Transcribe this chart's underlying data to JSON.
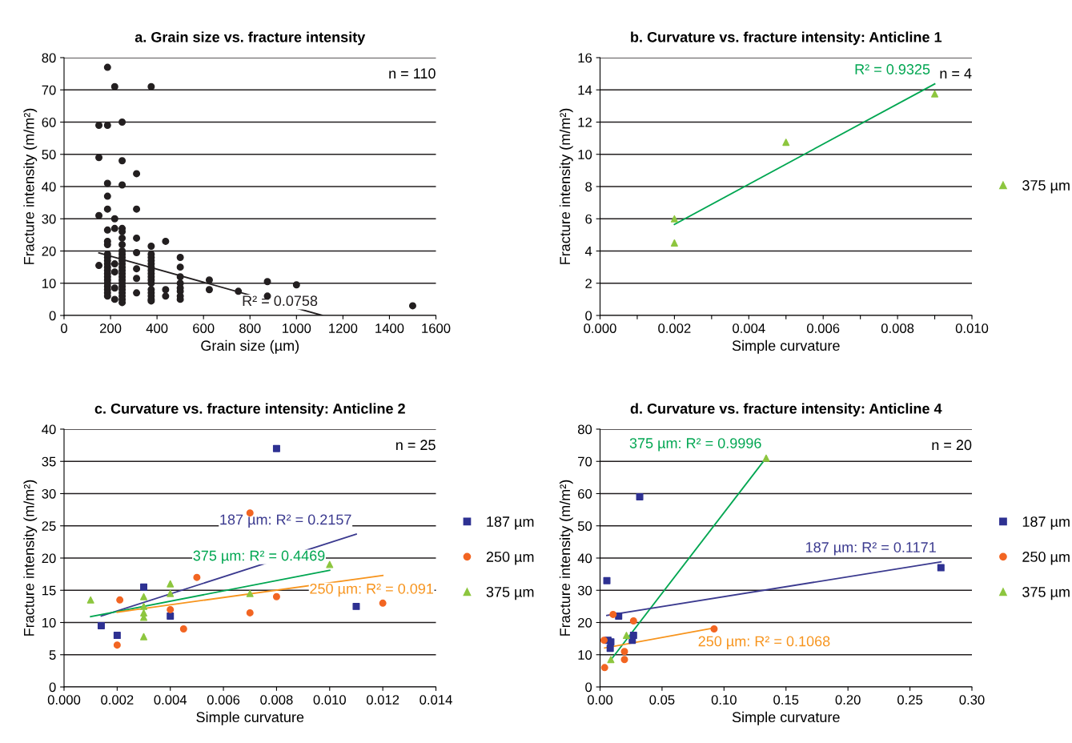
{
  "chart_data": [
    {
      "type": "scatter",
      "title": "a. Grain size vs. fracture intensity",
      "xlabel": "Grain size (µm)",
      "ylabel": "Fracture intensity (m/m²)",
      "xlim": [
        0,
        1600
      ],
      "xticks": [
        0,
        200,
        400,
        600,
        800,
        1000,
        1200,
        1400,
        1600
      ],
      "ylim": [
        0,
        80
      ],
      "yticks": [
        0,
        10,
        20,
        30,
        40,
        50,
        60,
        70,
        80
      ],
      "grid": "y",
      "legend": false,
      "annotations": [
        "n = 110"
      ],
      "series": [
        {
          "color": "#231f20",
          "marker": "circle",
          "x": [
            150,
            150,
            150,
            150,
            187,
            187,
            187,
            187,
            187,
            187,
            187,
            187,
            187,
            187,
            187,
            187,
            187,
            187,
            187,
            187,
            187,
            187,
            187,
            187,
            187,
            187,
            218,
            218,
            218,
            218,
            218,
            218,
            218,
            250,
            250,
            250,
            250,
            250,
            250,
            250,
            250,
            250,
            250,
            250,
            250,
            250,
            250,
            250,
            250,
            250,
            250,
            250,
            250,
            250,
            250,
            250,
            250,
            312,
            312,
            312,
            312,
            312,
            312,
            312,
            375,
            375,
            375,
            375,
            375,
            375,
            375,
            375,
            375,
            375,
            375,
            375,
            375,
            375,
            375,
            375,
            375,
            437,
            437,
            437,
            500,
            500,
            500,
            500,
            500,
            500,
            500,
            500,
            625,
            625,
            750,
            875,
            875,
            1000,
            1500
          ],
          "values": [
            59,
            49,
            31,
            15.5,
            77,
            59,
            41,
            37,
            33,
            26.5,
            23,
            22,
            19,
            18,
            17,
            16,
            15,
            14,
            13,
            12,
            11,
            10,
            9,
            8,
            7,
            6,
            71,
            30,
            27,
            16,
            13.5,
            8.5,
            5,
            60,
            48,
            40.5,
            27,
            26,
            24,
            22,
            20,
            19,
            18,
            17,
            16,
            15,
            14,
            13,
            12,
            11,
            10,
            9,
            8,
            7,
            6,
            5,
            4,
            44,
            33,
            24,
            19.5,
            14.5,
            11.5,
            7,
            71,
            21.5,
            19,
            18,
            17,
            16,
            15,
            14,
            13,
            12,
            11,
            10,
            8,
            7,
            6,
            5,
            4.5,
            23,
            8,
            6,
            18,
            15,
            12,
            10,
            8.5,
            7.5,
            6,
            5,
            11,
            8,
            7.5,
            10.5,
            6,
            9.5,
            3
          ]
        },
        {
          "type": "line",
          "name": "R² = 0.0758",
          "color": "#231f20",
          "x": [
            150,
            1111
          ],
          "values": [
            19.4,
            0
          ]
        }
      ]
    },
    {
      "type": "scatter",
      "title": "b. Curvature vs. fracture intensity: Anticline 1",
      "xlabel": "Simple curvature",
      "ylabel": "Fracture intensity (m/m²)",
      "xlim": [
        0,
        0.01
      ],
      "xticks": [
        {
          "value": 0,
          "label": "0.000"
        },
        {
          "value": 0.001,
          "label": null
        },
        {
          "value": 0.002,
          "label": "0.002"
        },
        {
          "value": 0.003,
          "label": null
        },
        {
          "value": 0.004,
          "label": "0.004"
        },
        {
          "value": 0.005,
          "label": null
        },
        {
          "value": 0.006,
          "label": "0.006"
        },
        {
          "value": 0.007,
          "label": null
        },
        {
          "value": 0.008,
          "label": "0.008"
        },
        {
          "value": 0.009,
          "label": null
        },
        {
          "value": 0.01,
          "label": "0.010"
        }
      ],
      "ylim": [
        0,
        16
      ],
      "yticks": [
        0,
        2,
        4,
        6,
        8,
        10,
        12,
        14,
        16
      ],
      "grid": "y",
      "legend": "right",
      "annotations": [
        "n = 4"
      ],
      "series": [
        {
          "name": "375 µm",
          "color": "#8dc63f",
          "marker": "triangle",
          "x": [
            0.002,
            0.002,
            0.005,
            0.009
          ],
          "values": [
            6.0,
            4.5,
            10.75,
            13.75
          ]
        },
        {
          "type": "line",
          "name": "R² = 0.9325",
          "color": "#00a651",
          "x": [
            0.002,
            0.009
          ],
          "values": [
            5.65,
            14.37
          ]
        }
      ]
    },
    {
      "type": "scatter",
      "title": "c. Curvature vs. fracture intensity: Anticline 2",
      "xlabel": "Simple curvature",
      "ylabel": "Fracture intensity (m/m²)",
      "xlim": [
        0,
        0.014
      ],
      "xticks": [
        {
          "value": 0,
          "label": "0.000"
        },
        {
          "value": 0.002,
          "label": "0.002"
        },
        {
          "value": 0.004,
          "label": "0.004"
        },
        {
          "value": 0.006,
          "label": "0.006"
        },
        {
          "value": 0.008,
          "label": "0.008"
        },
        {
          "value": 0.01,
          "label": "0.010"
        },
        {
          "value": 0.012,
          "label": "0.012"
        },
        {
          "value": 0.014,
          "label": "0.014"
        }
      ],
      "ylim": [
        0,
        40
      ],
      "yticks": [
        0,
        5,
        10,
        15,
        20,
        25,
        30,
        35,
        40
      ],
      "grid": "y",
      "legend": "right",
      "annotations": [
        "n = 25"
      ],
      "series": [
        {
          "name": "187 µm",
          "color": "#2e3192",
          "marker": "square",
          "x": [
            0.008,
            0.003,
            0.0014,
            0.002,
            0.004,
            0.011
          ],
          "values": [
            37,
            15.5,
            9.5,
            8.0,
            11.0,
            12.5
          ]
        },
        {
          "name": "250 µm",
          "color": "#f26522",
          "marker": "circle",
          "x": [
            0.0021,
            0.002,
            0.007,
            0.004,
            0.0045,
            0.005,
            0.007,
            0.008,
            0.012
          ],
          "values": [
            13.5,
            6.5,
            27,
            12.0,
            9.0,
            17.0,
            11.5,
            14.0,
            13.0
          ]
        },
        {
          "name": "375 µm",
          "color": "#8dc63f",
          "marker": "triangle",
          "x": [
            0.001,
            0.003,
            0.003,
            0.003,
            0.003,
            0.003,
            0.004,
            0.004,
            0.007,
            0.01
          ],
          "values": [
            13.5,
            14.0,
            12.5,
            11.5,
            10.8,
            7.8,
            16.0,
            14.5,
            14.5,
            19.0
          ]
        },
        {
          "type": "line",
          "name": "187 µm: R² = 0.2157",
          "color": "#3b3a8f",
          "x": [
            0.0014,
            0.011
          ],
          "values": [
            11.0,
            23.7
          ]
        },
        {
          "type": "line",
          "name": "375 µm: R² = 0.4469",
          "color": "#00a651",
          "x": [
            0.001,
            0.01
          ],
          "values": [
            10.9,
            18.1
          ]
        },
        {
          "type": "line",
          "name": "250 µm: R² = 0.091",
          "color": "#f7941d",
          "x": [
            0.002,
            0.012
          ],
          "values": [
            11.6,
            17.3
          ]
        }
      ]
    },
    {
      "type": "scatter",
      "title": "d. Curvature vs. fracture intensity: Anticline 4",
      "xlabel": "Simple curvature",
      "ylabel": "Fracture intensity (m/m²)",
      "xlim": [
        0,
        0.3
      ],
      "xticks": [
        {
          "value": 0,
          "label": "0.00"
        },
        {
          "value": 0.05,
          "label": "0.05"
        },
        {
          "value": 0.1,
          "label": "0.10"
        },
        {
          "value": 0.15,
          "label": "0.15"
        },
        {
          "value": 0.2,
          "label": "0.20"
        },
        {
          "value": 0.25,
          "label": "0.25"
        },
        {
          "value": 0.3,
          "label": "0.30"
        }
      ],
      "ylim": [
        0,
        80
      ],
      "yticks": [
        0,
        10,
        20,
        30,
        40,
        50,
        60,
        70,
        80
      ],
      "grid": "y",
      "legend": "right",
      "annotations": [
        "n = 20"
      ],
      "series": [
        {
          "name": "187 µm",
          "color": "#2e3192",
          "marker": "square",
          "x": [
            0.0055,
            0.032,
            0.015,
            0.0064,
            0.0087,
            0.0082,
            0.026,
            0.027,
            0.275
          ],
          "values": [
            33.0,
            59.0,
            22.0,
            14.5,
            14.0,
            12.0,
            14.5,
            16.0,
            37.0
          ]
        },
        {
          "name": "250 µm",
          "color": "#f26522",
          "marker": "circle",
          "x": [
            0.0037,
            0.0032,
            0.0105,
            0.0197,
            0.0197,
            0.027,
            0.092
          ],
          "values": [
            6.0,
            14.5,
            22.5,
            11.0,
            8.5,
            20.5,
            18.0
          ]
        },
        {
          "name": "375 µm",
          "color": "#8dc63f",
          "marker": "triangle",
          "x": [
            0.0087,
            0.0213,
            0.134
          ],
          "values": [
            8.5,
            16.0,
            71.0
          ]
        },
        {
          "type": "line",
          "name": "375 µm: R² = 0.9996",
          "color": "#00a651",
          "x": [
            0.0087,
            0.134
          ],
          "values": [
            8.4,
            71.1
          ]
        },
        {
          "type": "line",
          "name": "187 µm: R² = 0.1171",
          "color": "#3b3a8f",
          "x": [
            0.0055,
            0.275
          ],
          "values": [
            22.2,
            38.8
          ]
        },
        {
          "type": "line",
          "name": "250 µm: R² = 0.1068",
          "color": "#f7941d",
          "x": [
            0.0037,
            0.092
          ],
          "values": [
            12.1,
            18.3
          ]
        }
      ]
    }
  ]
}
